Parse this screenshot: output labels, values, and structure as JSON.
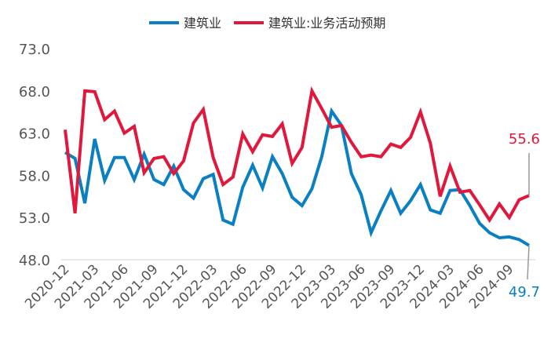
{
  "chart_data": {
    "type": "line",
    "title": "",
    "xlabel": "",
    "ylabel": "",
    "ylim": [
      48.0,
      73.0
    ],
    "yticks": [
      "48.0",
      "53.0",
      "58.0",
      "63.0",
      "68.0",
      "73.0"
    ],
    "legend_position": "top-center",
    "grid": false,
    "x": [
      "2020-12",
      "2021-01",
      "2021-02",
      "2021-03",
      "2021-04",
      "2021-05",
      "2021-06",
      "2021-07",
      "2021-08",
      "2021-09",
      "2021-10",
      "2021-11",
      "2021-12",
      "2022-01",
      "2022-02",
      "2022-03",
      "2022-04",
      "2022-05",
      "2022-06",
      "2022-07",
      "2022-08",
      "2022-09",
      "2022-10",
      "2022-11",
      "2022-12",
      "2023-01",
      "2023-02",
      "2023-03",
      "2023-04",
      "2023-05",
      "2023-06",
      "2023-07",
      "2023-08",
      "2023-09",
      "2023-10",
      "2023-11",
      "2023-12",
      "2024-01",
      "2024-02",
      "2024-03",
      "2024-04",
      "2024-05",
      "2024-06",
      "2024-07",
      "2024-08",
      "2024-09",
      "2024-10",
      "2024-11"
    ],
    "xtick_labels": [
      "2020-12",
      "2021-03",
      "2021-06",
      "2021-09",
      "2021-12",
      "2022-03",
      "2022-06",
      "2022-09",
      "2022-12",
      "2023-03",
      "2023-06",
      "2023-09",
      "2023-12",
      "2024-03",
      "2024-06",
      "2024-09"
    ],
    "series": [
      {
        "name": "建筑业",
        "color": "#0a7fc2",
        "values": [
          60.7,
          60.0,
          54.7,
          62.3,
          57.4,
          60.1,
          60.1,
          57.5,
          60.5,
          57.5,
          56.9,
          59.1,
          56.3,
          55.3,
          57.6,
          58.1,
          52.7,
          52.2,
          56.6,
          59.2,
          56.5,
          60.2,
          58.2,
          55.4,
          54.4,
          56.4,
          60.2,
          65.6,
          63.9,
          58.2,
          55.7,
          51.2,
          53.8,
          56.2,
          53.5,
          55.0,
          56.9,
          53.9,
          53.5,
          56.2,
          56.3,
          54.4,
          52.3,
          51.2,
          50.6,
          50.7,
          50.4,
          49.7
        ]
      },
      {
        "name": "建筑业:业务活动预期",
        "color": "#e0183c",
        "values": [
          63.4,
          53.5,
          68.0,
          67.9,
          64.6,
          65.6,
          63.0,
          63.8,
          58.3,
          60.0,
          60.2,
          58.2,
          59.7,
          64.2,
          65.8,
          60.1,
          56.9,
          57.8,
          62.9,
          60.8,
          62.8,
          62.6,
          64.1,
          59.4,
          61.3,
          68.0,
          65.9,
          63.7,
          63.9,
          61.9,
          60.2,
          60.4,
          60.2,
          61.7,
          61.3,
          62.5,
          65.5,
          61.8,
          55.5,
          59.1,
          56.0,
          56.2,
          54.5,
          52.7,
          54.6,
          53.0,
          55.1,
          55.6
        ]
      }
    ],
    "annotations": [
      {
        "text": "55.6",
        "series": "建筑业:业务活动预期",
        "color": "#e0183c"
      },
      {
        "text": "49.7",
        "series": "建筑业",
        "color": "#0a7fc2"
      }
    ]
  }
}
